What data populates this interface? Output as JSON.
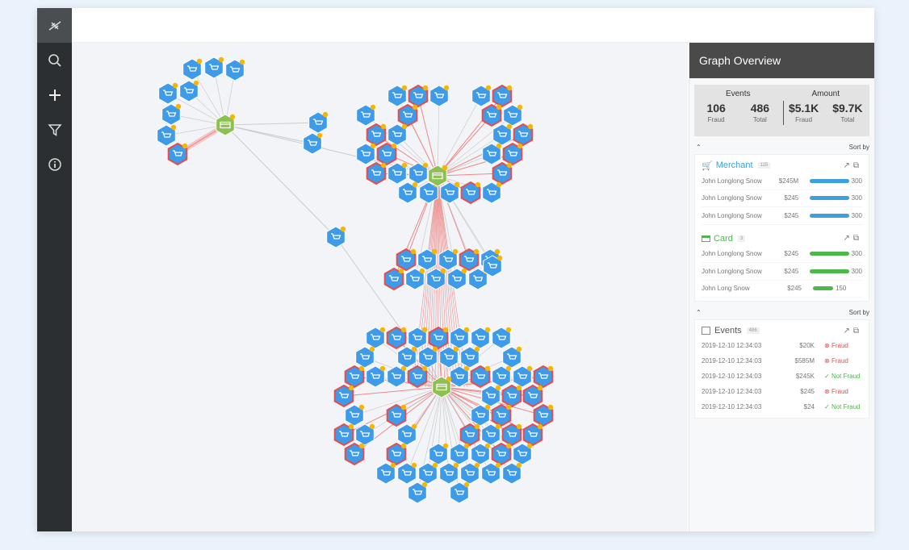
{
  "sidebar": {
    "items": [
      {
        "icon": "dna-logo-icon"
      },
      {
        "icon": "search-icon"
      },
      {
        "icon": "plus-icon"
      },
      {
        "icon": "filter-icon"
      },
      {
        "icon": "info-icon"
      }
    ]
  },
  "panel": {
    "title": "Graph Overview",
    "stats": {
      "events_label": "Events",
      "events_fraud": "106",
      "events_fraud_label": "Fraud",
      "events_total": "486",
      "events_total_label": "Total",
      "amount_label": "Amount",
      "amount_fraud": "$5.1K",
      "amount_fraud_label": "Fraud",
      "amount_total": "$9.7K",
      "amount_total_label": "Total"
    },
    "sort_by": "Sort by",
    "merchant": {
      "title": "Merchant",
      "count": "115",
      "color": "#3ca0e0",
      "rows": [
        {
          "name": "John Longlong Snow",
          "amount": "$245M",
          "value": "300",
          "fill": 1.0
        },
        {
          "name": "John Longlong Snow",
          "amount": "$245",
          "value": "300",
          "fill": 1.0
        },
        {
          "name": "John Longlong Snow",
          "amount": "$245",
          "value": "300",
          "fill": 1.0
        }
      ]
    },
    "card": {
      "title": "Card",
      "count": "3",
      "color": "#4cb84c",
      "rows": [
        {
          "name": "John Longlong Snow",
          "amount": "$245",
          "value": "300",
          "fill": 1.0
        },
        {
          "name": "John Longlong Snow",
          "amount": "$245",
          "value": "300",
          "fill": 1.0
        },
        {
          "name": "John Long Snow",
          "amount": "$245",
          "value": "150",
          "fill": 0.5
        }
      ]
    },
    "events": {
      "title": "Events",
      "count": "486",
      "rows": [
        {
          "date": "2019-12-10  12:34:03",
          "amount": "$20K",
          "status": "Fraud"
        },
        {
          "date": "2019-12-10  12:34:03",
          "amount": "$585M",
          "status": "Fraud"
        },
        {
          "date": "2019-12-10  12:34:03",
          "amount": "$245K",
          "status": "Not Fraud"
        },
        {
          "date": "2019-12-10  12:34:03",
          "amount": "$245",
          "status": "Fraud"
        },
        {
          "date": "2019-12-10  12:34:03",
          "amount": "$24",
          "status": "Not Fraud"
        }
      ]
    },
    "colors": {
      "fraud": "#e84c4c",
      "not_fraud": "#4cb84c",
      "merchant_node": "#3d9be9",
      "card_node": "#8cc152",
      "alert_dot": "#f5b500"
    }
  }
}
